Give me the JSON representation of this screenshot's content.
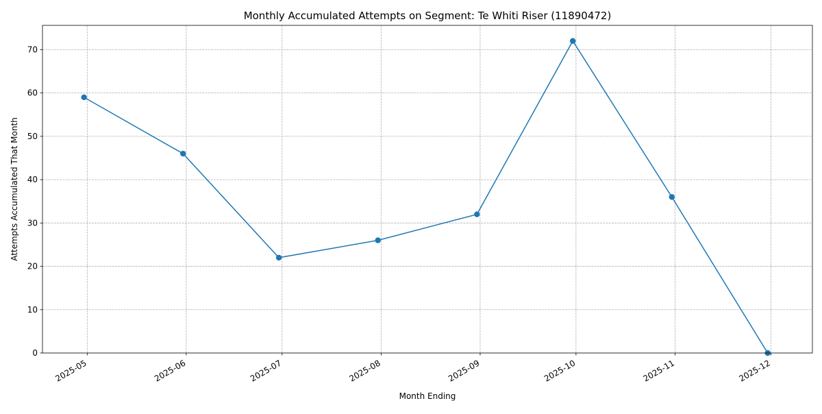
{
  "chart_data": {
    "type": "line",
    "title": "Monthly Accumulated Attempts on Segment: Te Whiti Riser (11890472)",
    "xlabel": "Month Ending",
    "ylabel": "Attempts Accumulated That Month",
    "x": [
      "2025-04-30",
      "2025-05-31",
      "2025-06-30",
      "2025-07-31",
      "2025-08-31",
      "2025-09-30",
      "2025-10-31",
      "2025-11-30"
    ],
    "series": [
      {
        "values": [
          59,
          46,
          22,
          26,
          32,
          72,
          36,
          0
        ],
        "color": "#1f77b4"
      }
    ],
    "xticks": [
      "2025-05",
      "2025-06",
      "2025-07",
      "2025-08",
      "2025-09",
      "2025-10",
      "2025-11",
      "2025-12"
    ],
    "xlim": [
      "2025-04-17",
      "2025-12-14"
    ],
    "yticks": [
      0,
      10,
      20,
      30,
      40,
      50,
      60,
      70
    ],
    "ylim": [
      0,
      75.6
    ],
    "grid": true
  }
}
